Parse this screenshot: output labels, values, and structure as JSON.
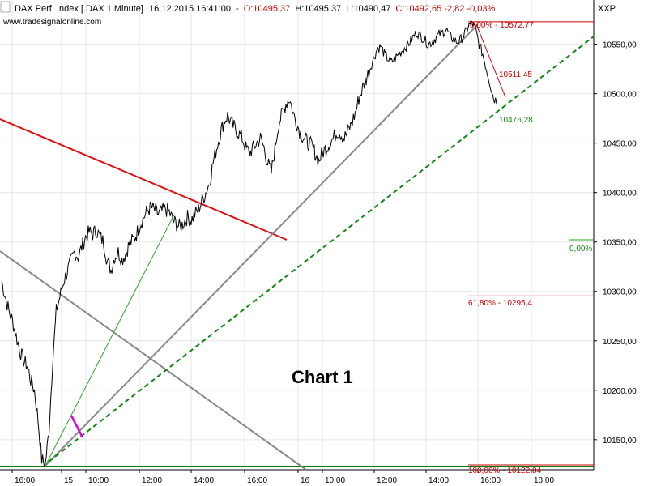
{
  "header": {
    "symbol": "DAX Perf. Index [.DAX  1 Minute]",
    "datetime": "16.12.2015 16:41:00",
    "sep": "-",
    "open": "O:10495,37",
    "high": "H:10495,37",
    "low": "L:10490,47",
    "close_change": "C:10492,65 -2,82 -0,03%",
    "source": "www.tradesignalonline.com"
  },
  "axis_label": "XXP",
  "chart_title": "Chart 1",
  "colors": {
    "price": "#000000",
    "red_trend": "#dd1111",
    "gray_trend": "#8a8a8a",
    "green_dashed": "#118811",
    "green_thin": "#22aa22",
    "fib_red": "#cc0000",
    "base_green": "#0a7a0a",
    "magenta": "#dd00dd",
    "grid": "#e6e6e6",
    "background": "#ffffff"
  },
  "chart_data": {
    "type": "line",
    "ylim": [
      10122,
      10580
    ],
    "y_ticks": [
      {
        "value": 10150,
        "label": "10150,00"
      },
      {
        "value": 10200,
        "label": "10200,00"
      },
      {
        "value": 10250,
        "label": "10250,00"
      },
      {
        "value": 10300,
        "label": "10300,00"
      },
      {
        "value": 10350,
        "label": "10350,00"
      },
      {
        "value": 10400,
        "label": "10400,00"
      },
      {
        "value": 10450,
        "label": "10450,00"
      },
      {
        "value": 10500,
        "label": "10500,00"
      },
      {
        "value": 10550,
        "label": "10550,00"
      }
    ],
    "x_ticks": [
      "16:00",
      "15",
      "10:00",
      "12:00",
      "14:00",
      "16:00",
      "16",
      "10:00",
      "12:00",
      "14:00",
      "16:00",
      "18:00"
    ],
    "series": [
      {
        "values": [
          10310,
          10295,
          10280,
          10270,
          10255,
          10240,
          10230,
          10225,
          10210,
          10200,
          10170,
          10130,
          10125,
          10160,
          10230,
          10280,
          10295,
          10310,
          10320,
          10330,
          10340,
          10335,
          10345,
          10355,
          10360,
          10358,
          10362,
          10355,
          10350,
          10330,
          10322,
          10335,
          10340,
          10332,
          10338,
          10348,
          10352,
          10358,
          10368,
          10375,
          10382,
          10385,
          10382,
          10378,
          10381,
          10383,
          10380,
          10372,
          10368,
          10365,
          10370,
          10375,
          10372,
          10378,
          10383,
          10392,
          10400,
          10410,
          10430,
          10445,
          10460,
          10472,
          10478,
          10470,
          10465,
          10460,
          10455,
          10445,
          10440,
          10445,
          10450,
          10455,
          10445,
          10430,
          10420,
          10445,
          10470,
          10480,
          10490,
          10495,
          10480,
          10470,
          10460,
          10455,
          10450,
          10448,
          10440,
          10432,
          10440,
          10445,
          10450,
          10455,
          10462,
          10460,
          10455,
          10462,
          10470,
          10480,
          10495,
          10505,
          10515,
          10525,
          10535,
          10545,
          10548,
          10540,
          10535,
          10532,
          10536,
          10540,
          10544,
          10548,
          10552,
          10558,
          10562,
          10558,
          10555,
          10550,
          10552,
          10556,
          10560,
          10562,
          10565,
          10558,
          10555,
          10552,
          10555,
          10560,
          10568,
          10572,
          10565,
          10550,
          10540,
          10525,
          10510,
          10495,
          10493
        ]
      }
    ],
    "annotations": [
      {
        "label": "0,00% - 10572,77",
        "value": 10572.77
      },
      {
        "label": "10511,45",
        "value": 10511.45
      },
      {
        "label": "10476,28",
        "value": 10476.28
      },
      {
        "label": "0,00%"
      },
      {
        "label": "61,80% - 10295,4",
        "value": 10295.4
      },
      {
        "label": "100,00% - 10122,84",
        "value": 10122.84
      }
    ]
  }
}
